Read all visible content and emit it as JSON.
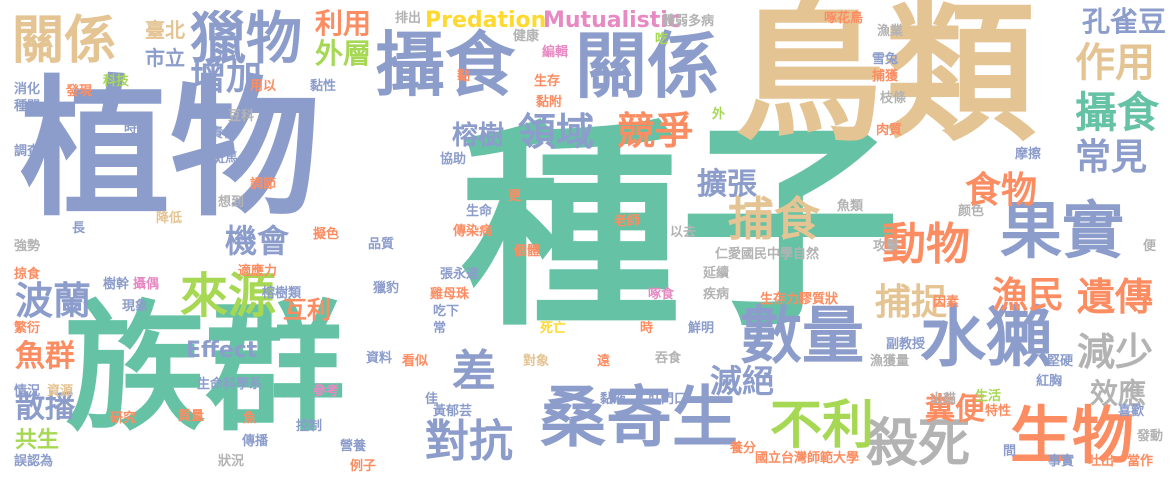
{
  "palette": {
    "blue": "#8c9dcb",
    "teal": "#66c2a5",
    "tan": "#e5c494",
    "orange": "#fc8d62",
    "pink": "#e78ac3",
    "green": "#a6d854",
    "yellow": "#ffd92f",
    "gray": "#b3b3b3"
  },
  "words": [
    {
      "id": "w001",
      "text": "種子",
      "color": "#66c2a5"
    },
    {
      "id": "w002",
      "text": "植物",
      "color": "#8c9dcb"
    },
    {
      "id": "w003",
      "text": "鳥類",
      "color": "#e5c494"
    },
    {
      "id": "w004",
      "text": "族群",
      "color": "#66c2a5"
    },
    {
      "id": "w005",
      "text": "攝食",
      "color": "#8c9dcb"
    },
    {
      "id": "w006",
      "text": "關係",
      "color": "#8c9dcb"
    },
    {
      "id": "w007",
      "text": "獵物",
      "color": "#8c9dcb"
    },
    {
      "id": "w008",
      "text": "關係",
      "color": "#e5c494"
    },
    {
      "id": "w009",
      "text": "果實",
      "color": "#8c9dcb"
    },
    {
      "id": "w010",
      "text": "水獺",
      "color": "#8c9dcb"
    },
    {
      "id": "w011",
      "text": "桑寄生",
      "color": "#8c9dcb"
    },
    {
      "id": "w012",
      "text": "數量",
      "color": "#8c9dcb"
    },
    {
      "id": "w013",
      "text": "生物",
      "color": "#fc8d62"
    },
    {
      "id": "w014",
      "text": "殺死",
      "color": "#b3b3b3"
    },
    {
      "id": "w015",
      "text": "不利",
      "color": "#a6d854"
    },
    {
      "id": "w016",
      "text": "對抗",
      "color": "#8c9dcb"
    },
    {
      "id": "w017",
      "text": "捕食",
      "color": "#e5c494"
    },
    {
      "id": "w018",
      "text": "動物",
      "color": "#fc8d62"
    },
    {
      "id": "w019",
      "text": "食物",
      "color": "#fc8d62"
    },
    {
      "id": "w020",
      "text": "領域",
      "color": "#8c9dcb"
    },
    {
      "id": "w021",
      "text": "競爭",
      "color": "#fc8d62"
    },
    {
      "id": "w022",
      "text": "來源",
      "color": "#a6d854"
    },
    {
      "id": "w023",
      "text": "波蘭",
      "color": "#8c9dcb"
    },
    {
      "id": "w024",
      "text": "攝食",
      "color": "#66c2a5"
    },
    {
      "id": "w025",
      "text": "常見",
      "color": "#8c9dcb"
    },
    {
      "id": "w026",
      "text": "作用",
      "color": "#e5c494"
    },
    {
      "id": "w027",
      "text": "遺傳",
      "color": "#fc8d62"
    },
    {
      "id": "w028",
      "text": "漁民",
      "color": "#fc8d62"
    },
    {
      "id": "w029",
      "text": "減少",
      "color": "#b3b3b3"
    },
    {
      "id": "w030",
      "text": "捕捉",
      "color": "#e5c494"
    },
    {
      "id": "w031",
      "text": "滅絕",
      "color": "#8c9dcb"
    },
    {
      "id": "w032",
      "text": "擴張",
      "color": "#8c9dcb"
    },
    {
      "id": "w033",
      "text": "機會",
      "color": "#8c9dcb"
    },
    {
      "id": "w034",
      "text": "增加",
      "color": "#8c9dcb"
    },
    {
      "id": "w035",
      "text": "外層",
      "color": "#a6d854"
    },
    {
      "id": "w036",
      "text": "利用",
      "color": "#fc8d62"
    },
    {
      "id": "w037",
      "text": "榕樹",
      "color": "#8c9dcb"
    },
    {
      "id": "w038",
      "text": "孔雀豆",
      "color": "#8c9dcb"
    },
    {
      "id": "w039",
      "text": "差",
      "color": "#8c9dcb"
    },
    {
      "id": "w040",
      "text": "魚群",
      "color": "#fc8d62"
    },
    {
      "id": "w041",
      "text": "散播",
      "color": "#8c9dcb"
    },
    {
      "id": "w042",
      "text": "共生",
      "color": "#a6d854"
    },
    {
      "id": "w043",
      "text": "糞便",
      "color": "#fc8d62"
    },
    {
      "id": "w044",
      "text": "效應",
      "color": "#b3b3b3"
    },
    {
      "id": "w045",
      "text": "互利",
      "color": "#fc8d62"
    },
    {
      "id": "w046",
      "text": "Predation",
      "color": "#ffd92f"
    },
    {
      "id": "w047",
      "text": "Mutualistic",
      "color": "#e78ac3"
    },
    {
      "id": "w048",
      "text": "Effect",
      "color": "#8c9dcb"
    },
    {
      "id": "w049",
      "text": "臺北",
      "color": "#e5c494"
    },
    {
      "id": "w050",
      "text": "市立",
      "color": "#8c9dcb"
    },
    {
      "id": "w051",
      "text": "排出",
      "color": "#b3b3b3"
    },
    {
      "id": "w052",
      "text": "體弱多病",
      "color": "#b3b3b3"
    },
    {
      "id": "w053",
      "text": "啄花鳥",
      "color": "#fc8d62"
    },
    {
      "id": "w054",
      "text": "漁業",
      "color": "#b3b3b3"
    },
    {
      "id": "w055",
      "text": "雪兔",
      "color": "#8c9dcb"
    },
    {
      "id": "w056",
      "text": "捕獲",
      "color": "#fc8d62"
    },
    {
      "id": "w057",
      "text": "枝條",
      "color": "#b3b3b3"
    },
    {
      "id": "w058",
      "text": "肉質",
      "color": "#fc8d62"
    },
    {
      "id": "w059",
      "text": "摩擦",
      "color": "#8c9dcb"
    },
    {
      "id": "w060",
      "text": "消化",
      "color": "#8c9dcb"
    },
    {
      "id": "w061",
      "text": "種間",
      "color": "#8c9dcb"
    },
    {
      "id": "w062",
      "text": "發現",
      "color": "#fc8d62"
    },
    {
      "id": "w063",
      "text": "科技",
      "color": "#a6d854"
    },
    {
      "id": "w064",
      "text": "調查",
      "color": "#8c9dcb"
    },
    {
      "id": "w065",
      "text": "時常",
      "color": "#8c9dcb"
    },
    {
      "id": "w066",
      "text": "責任",
      "color": "#8c9dcb"
    },
    {
      "id": "w067",
      "text": "斑馬",
      "color": "#8c9dcb"
    },
    {
      "id": "w068",
      "text": "調節",
      "color": "#fc8d62"
    },
    {
      "id": "w069",
      "text": "降低",
      "color": "#e5c494"
    },
    {
      "id": "w070",
      "text": "想到",
      "color": "#b3b3b3"
    },
    {
      "id": "w071",
      "text": "豆科",
      "color": "#b3b3b3"
    },
    {
      "id": "w072",
      "text": "用以",
      "color": "#fc8d62"
    },
    {
      "id": "w073",
      "text": "黏性",
      "color": "#8c9dcb"
    },
    {
      "id": "w074",
      "text": "健康",
      "color": "#b3b3b3"
    },
    {
      "id": "w075",
      "text": "編輯",
      "color": "#e78ac3"
    },
    {
      "id": "w076",
      "text": "黏",
      "color": "#fc8d62"
    },
    {
      "id": "w077",
      "text": "生存",
      "color": "#fc8d62"
    },
    {
      "id": "w078",
      "text": "黏附",
      "color": "#fc8d62"
    },
    {
      "id": "w079",
      "text": "吃",
      "color": "#a6d854"
    },
    {
      "id": "w080",
      "text": "外",
      "color": "#a6d854"
    },
    {
      "id": "w081",
      "text": "協助",
      "color": "#8c9dcb"
    },
    {
      "id": "w082",
      "text": "強勢",
      "color": "#b3b3b3"
    },
    {
      "id": "w083",
      "text": "長",
      "color": "#8c9dcb"
    },
    {
      "id": "w084",
      "text": "掠食",
      "color": "#fc8d62"
    },
    {
      "id": "w085",
      "text": "樹幹",
      "color": "#8c9dcb"
    },
    {
      "id": "w086",
      "text": "攝偶",
      "color": "#e78ac3"
    },
    {
      "id": "w087",
      "text": "繁衍",
      "color": "#fc8d62"
    },
    {
      "id": "w088",
      "text": "現象",
      "color": "#8c9dcb"
    },
    {
      "id": "w089",
      "text": "情況",
      "color": "#8c9dcb"
    },
    {
      "id": "w090",
      "text": "資源",
      "color": "#e5c494"
    },
    {
      "id": "w091",
      "text": "研究",
      "color": "#fc8d62"
    },
    {
      "id": "w092",
      "text": "質量",
      "color": "#fc8d62"
    },
    {
      "id": "w093",
      "text": "魚",
      "color": "#fc8d62"
    },
    {
      "id": "w094",
      "text": "誤認為",
      "color": "#8c9dcb"
    },
    {
      "id": "w095",
      "text": "狀況",
      "color": "#b3b3b3"
    },
    {
      "id": "w096",
      "text": "傳播",
      "color": "#8c9dcb"
    },
    {
      "id": "w097",
      "text": "生命科學系",
      "color": "#8c9dcb"
    },
    {
      "id": "w098",
      "text": "參考",
      "color": "#e78ac3"
    },
    {
      "id": "w099",
      "text": "擬色",
      "color": "#fc8d62"
    },
    {
      "id": "w100",
      "text": "品質",
      "color": "#8c9dcb"
    },
    {
      "id": "w101",
      "text": "適應力",
      "color": "#fc8d62"
    },
    {
      "id": "w102",
      "text": "榕樹類",
      "color": "#8c9dcb"
    },
    {
      "id": "w103",
      "text": "獵豹",
      "color": "#8c9dcb"
    },
    {
      "id": "w104",
      "text": "生命",
      "color": "#8c9dcb"
    },
    {
      "id": "w105",
      "text": "更",
      "color": "#fc8d62"
    },
    {
      "id": "w106",
      "text": "傳染病",
      "color": "#fc8d62"
    },
    {
      "id": "w107",
      "text": "張永達",
      "color": "#8c9dcb"
    },
    {
      "id": "w108",
      "text": "雞母珠",
      "color": "#fc8d62"
    },
    {
      "id": "w109",
      "text": "吃下",
      "color": "#8c9dcb"
    },
    {
      "id": "w110",
      "text": "常",
      "color": "#8c9dcb"
    },
    {
      "id": "w111",
      "text": "個體",
      "color": "#fc8d62"
    },
    {
      "id": "w112",
      "text": "以去",
      "color": "#b3b3b3"
    },
    {
      "id": "w113",
      "text": "老師",
      "color": "#fc8d62"
    },
    {
      "id": "w114",
      "text": "仁愛國民中學自然",
      "color": "#b3b3b3"
    },
    {
      "id": "w115",
      "text": "延續",
      "color": "#b3b3b3"
    },
    {
      "id": "w116",
      "text": "疾病",
      "color": "#b3b3b3"
    },
    {
      "id": "w117",
      "text": "啄食",
      "color": "#e78ac3"
    },
    {
      "id": "w118",
      "text": "生存力膠質狀",
      "color": "#fc8d62"
    },
    {
      "id": "w119",
      "text": "因素",
      "color": "#fc8d62"
    },
    {
      "id": "w120",
      "text": "死亡",
      "color": "#ffd92f"
    },
    {
      "id": "w121",
      "text": "時",
      "color": "#fc8d62"
    },
    {
      "id": "w122",
      "text": "鮮明",
      "color": "#8c9dcb"
    },
    {
      "id": "w123",
      "text": "副教授",
      "color": "#8c9dcb"
    },
    {
      "id": "w124",
      "text": "紅胸",
      "color": "#8c9dcb"
    },
    {
      "id": "w125",
      "text": "漁獲量",
      "color": "#b3b3b3"
    },
    {
      "id": "w126",
      "text": "堅硬",
      "color": "#8c9dcb"
    },
    {
      "id": "w127",
      "text": "生活",
      "color": "#a6d854"
    },
    {
      "id": "w128",
      "text": "山貓",
      "color": "#b3b3b3"
    },
    {
      "id": "w129",
      "text": "特性",
      "color": "#fc8d62"
    },
    {
      "id": "w130",
      "text": "喜歡",
      "color": "#8c9dcb"
    },
    {
      "id": "w131",
      "text": "發動",
      "color": "#b3b3b3"
    },
    {
      "id": "w132",
      "text": "事實",
      "color": "#8c9dcb"
    },
    {
      "id": "w133",
      "text": "吐出",
      "color": "#fc8d62"
    },
    {
      "id": "w134",
      "text": "當作",
      "color": "#fc8d62"
    },
    {
      "id": "w135",
      "text": "間",
      "color": "#8c9dcb"
    },
    {
      "id": "w136",
      "text": "國立台灣師範大學",
      "color": "#fc8d62"
    },
    {
      "id": "w137",
      "text": "養分",
      "color": "#fc8d62"
    },
    {
      "id": "w138",
      "text": "肛門口",
      "color": "#8c9dcb"
    },
    {
      "id": "w139",
      "text": "黏液",
      "color": "#8c9dcb"
    },
    {
      "id": "w140",
      "text": "吞食",
      "color": "#b3b3b3"
    },
    {
      "id": "w141",
      "text": "遠",
      "color": "#fc8d62"
    },
    {
      "id": "w142",
      "text": "對象",
      "color": "#e5c494"
    },
    {
      "id": "w143",
      "text": "看似",
      "color": "#fc8d62"
    },
    {
      "id": "w144",
      "text": "資料",
      "color": "#8c9dcb"
    },
    {
      "id": "w145",
      "text": "控制",
      "color": "#8c9dcb"
    },
    {
      "id": "w146",
      "text": "營養",
      "color": "#8c9dcb"
    },
    {
      "id": "w147",
      "text": "例子",
      "color": "#fc8d62"
    },
    {
      "id": "w148",
      "text": "黃郁芸",
      "color": "#8c9dcb"
    },
    {
      "id": "w149",
      "text": "佳",
      "color": "#8c9dcb"
    },
    {
      "id": "w150",
      "text": "颜色",
      "color": "#b3b3b3"
    },
    {
      "id": "w151",
      "text": "攻擊",
      "color": "#b3b3b3"
    },
    {
      "id": "w152",
      "text": "魚類",
      "color": "#b3b3b3"
    },
    {
      "id": "w153",
      "text": "便",
      "color": "#b3b3b3"
    }
  ]
}
